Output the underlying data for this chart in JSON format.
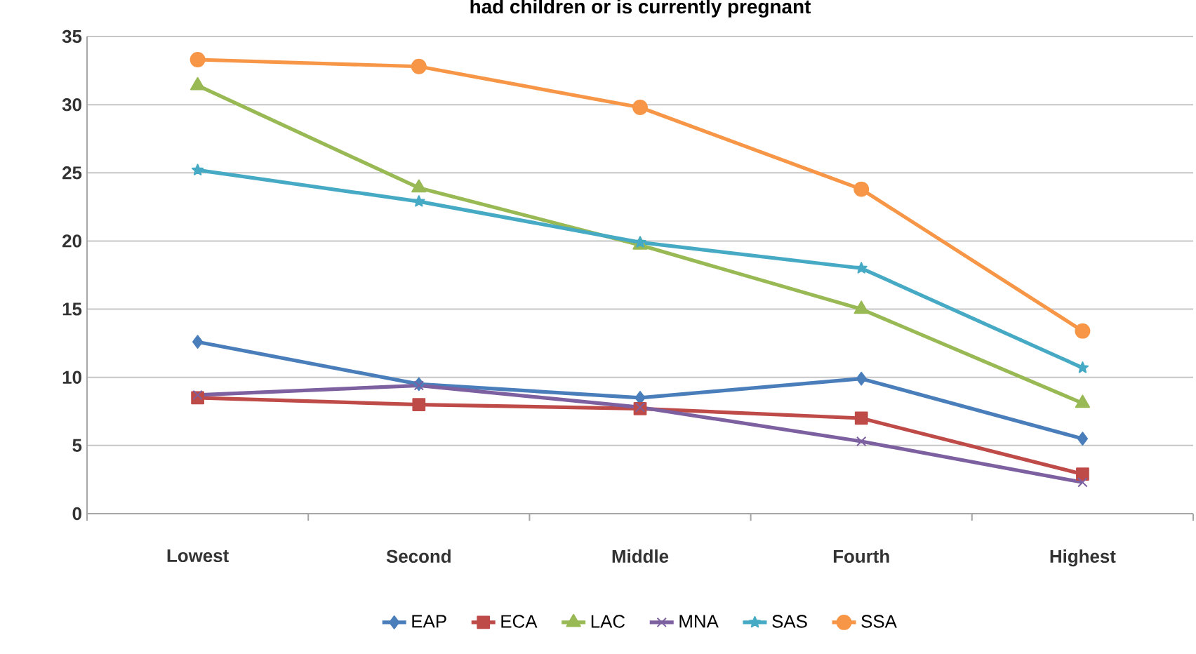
{
  "chart_data": {
    "type": "line",
    "title": "had children or is currently pregnant",
    "categories": [
      "Lowest",
      "Second",
      "Middle",
      "Fourth",
      "Highest"
    ],
    "series": [
      {
        "name": "EAP",
        "color": "#4a7ebb",
        "marker": "diamond",
        "values": [
          12.6,
          9.5,
          8.5,
          9.9,
          5.5
        ]
      },
      {
        "name": "ECA",
        "color": "#be4b48",
        "marker": "square",
        "values": [
          8.5,
          8.0,
          7.7,
          7.0,
          2.9
        ]
      },
      {
        "name": "LAC",
        "color": "#98b954",
        "marker": "triangle",
        "values": [
          31.4,
          23.9,
          19.7,
          15.0,
          8.1
        ]
      },
      {
        "name": "MNA",
        "color": "#7d60a0",
        "marker": "cross",
        "values": [
          8.7,
          9.4,
          7.8,
          5.3,
          2.3
        ]
      },
      {
        "name": "SAS",
        "color": "#46aac5",
        "marker": "star",
        "values": [
          25.2,
          22.9,
          19.9,
          18.0,
          10.7
        ]
      },
      {
        "name": "SSA",
        "color": "#f79646",
        "marker": "circle",
        "values": [
          33.3,
          32.8,
          29.8,
          23.8,
          13.4
        ]
      }
    ],
    "ylim": [
      0,
      35
    ],
    "yticks": [
      0,
      5,
      10,
      15,
      20,
      25,
      30,
      35
    ],
    "grid": "y",
    "legend": "bottom",
    "line_style": "solid"
  }
}
